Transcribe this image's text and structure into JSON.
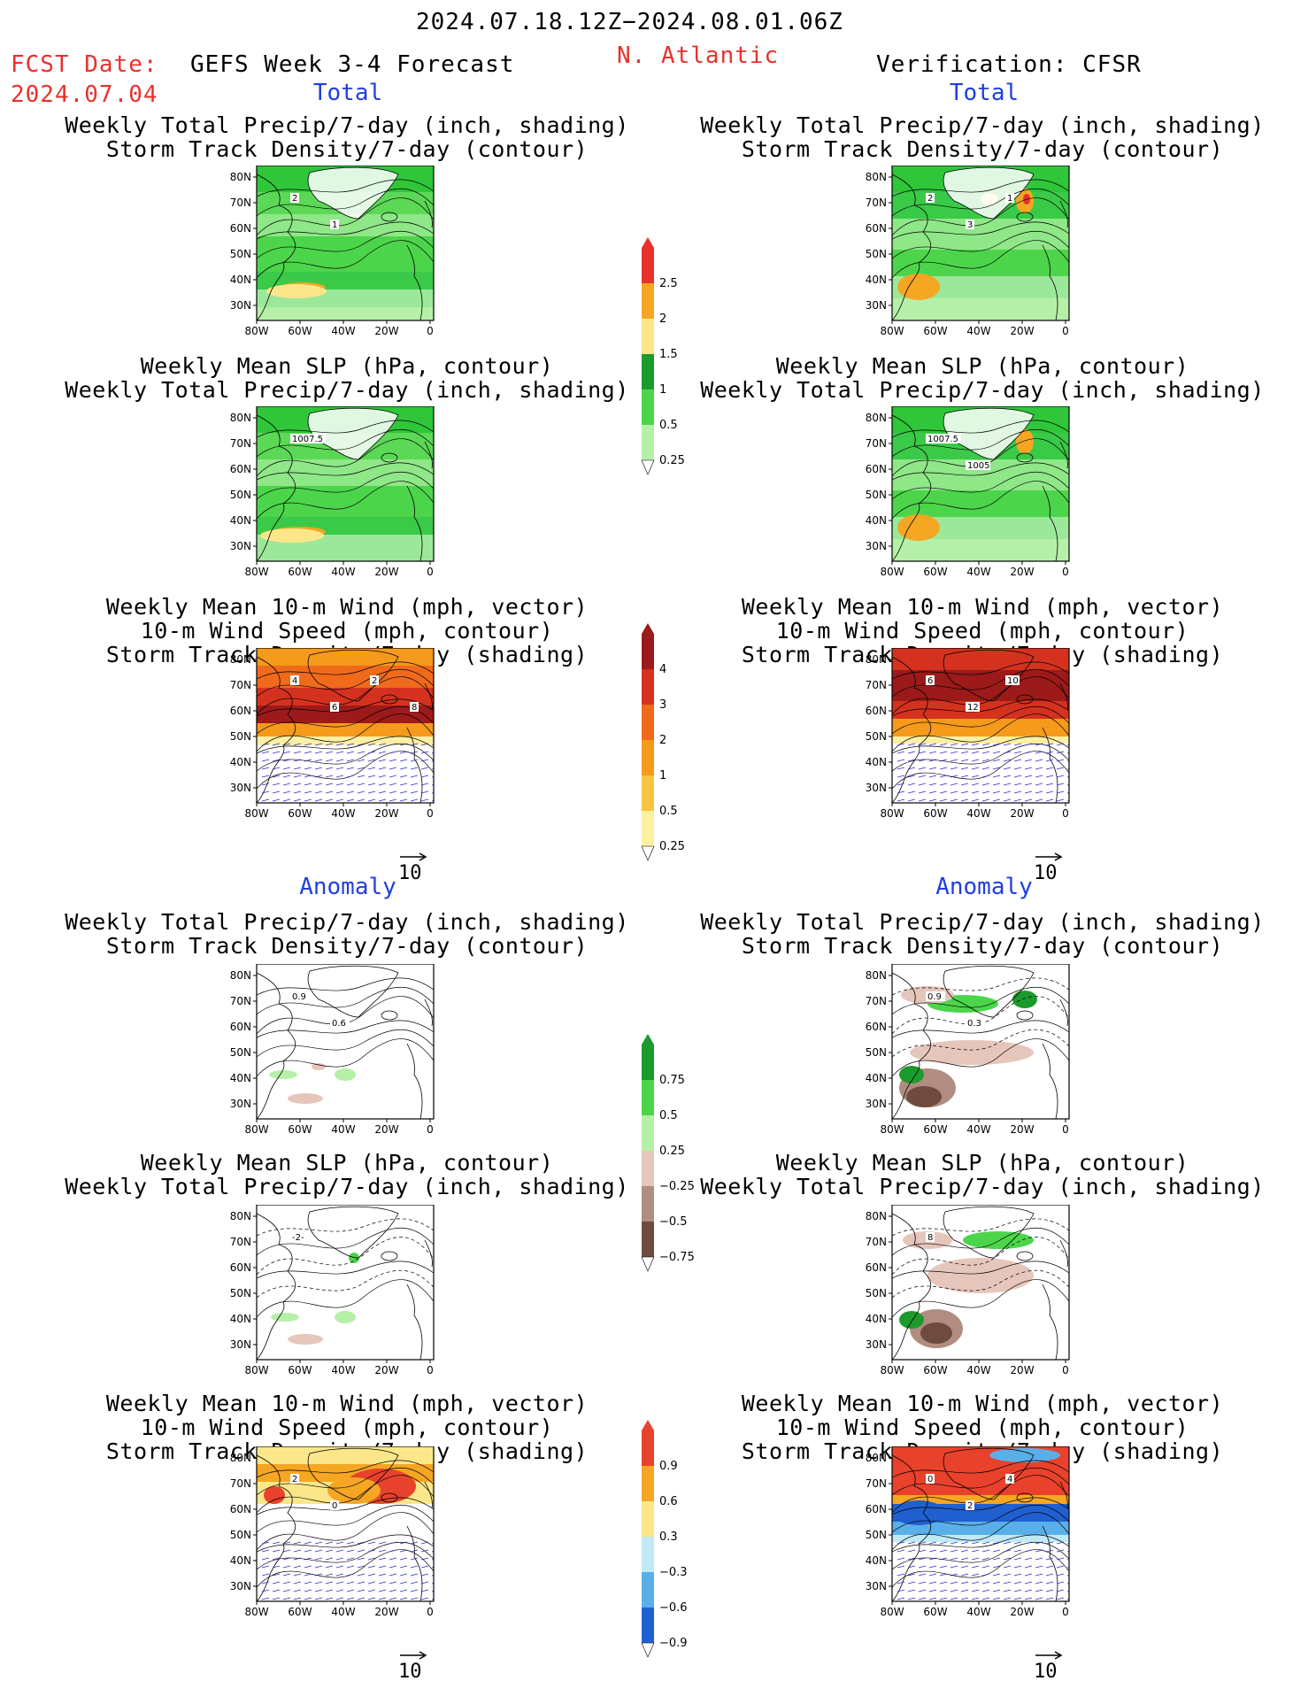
{
  "header": {
    "date_range": "2024.07.18.12Z−2024.08.01.06Z",
    "fcst_date_label": "FCST Date:",
    "fcst_date_value": "2024.07.04",
    "model": "GEFS Week 3-4 Forecast",
    "region": "N. Atlantic",
    "verification": "Verification: CFSR"
  },
  "sections": {
    "total": "Total",
    "anomaly": "Anomaly"
  },
  "titles": {
    "precip_track": [
      "Weekly Total Precip/7-day (inch, shading)",
      "Storm Track Density/7-day (contour)"
    ],
    "slp_precip": [
      "Weekly Mean SLP (hPa, contour)",
      "Weekly Total Precip/7-day (inch, shading)"
    ],
    "wind_track": [
      "Weekly Mean 10-m Wind (mph, vector)",
      "10-m Wind Speed (mph, contour)",
      "Storm Track Density/7-day (shading)"
    ]
  },
  "axes": {
    "lat_ticks": [
      "80N",
      "70N",
      "60N",
      "50N",
      "40N",
      "30N"
    ],
    "lon_ticks": [
      "80W",
      "60W",
      "40W",
      "20W",
      "0"
    ],
    "vector_ref": "10"
  },
  "colorbars": {
    "precip_total": {
      "labels": [
        "2.5",
        "2",
        "1.5",
        "1",
        "0.5",
        "0.25"
      ],
      "colors": [
        "#e8312c",
        "#f5a623",
        "#fbe78a",
        "#1d9a2c",
        "#4cd54a",
        "#b6f0a8"
      ]
    },
    "track_total": {
      "labels": [
        "4",
        "3",
        "2",
        "1",
        "0.5",
        "0.25"
      ],
      "colors": [
        "#9c1a1a",
        "#d4321f",
        "#f06a1c",
        "#f59a1b",
        "#f9c441",
        "#fdf0a3"
      ]
    },
    "precip_anom": {
      "labels": [
        "0.75",
        "0.5",
        "0.25",
        "−0.25",
        "−0.5",
        "−0.75"
      ],
      "colors": [
        "#1d9a2c",
        "#4cd54a",
        "#b6f0a8",
        "#e6c6bb",
        "#b18c80",
        "#6e4a3f"
      ]
    },
    "track_anom": {
      "labels": [
        "0.9",
        "0.6",
        "0.3",
        "−0.3",
        "−0.6",
        "−0.9"
      ],
      "colors": [
        "#e8412c",
        "#f5a623",
        "#fbe78a",
        "#bfeaf5",
        "#5aafe8",
        "#1f5fd0"
      ]
    }
  },
  "contour_labels": {
    "p1L": [
      "2",
      "1"
    ],
    "p1R": [
      "2",
      "3",
      "1"
    ],
    "p2L": [
      "1007.5"
    ],
    "p2R": [
      "1007.5",
      "1005"
    ],
    "p3L": [
      "4",
      "6",
      "2",
      "8",
      "6"
    ],
    "p3R": [
      "6",
      "12",
      "10"
    ],
    "p4L": [
      "0.9",
      "0.6"
    ],
    "p4R": [
      "0.9",
      "0.3"
    ],
    "p5L": [
      "-2-"
    ],
    "p5R": [
      "8"
    ],
    "p6L": [
      "2",
      "0"
    ],
    "p6R": [
      "0",
      "2",
      "4"
    ]
  }
}
